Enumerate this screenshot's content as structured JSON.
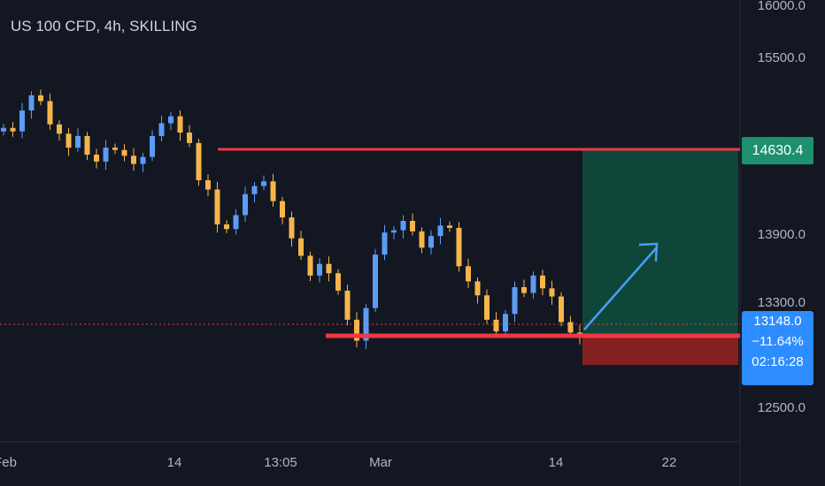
{
  "symbol_title": "US 100 CFD, 4h, SKILLING",
  "colors": {
    "background": "#131722",
    "candle_up": "#5b9cf6",
    "candle_down": "#f6b54c",
    "level_line": "#f23645",
    "profit_zone": "#0e4a3b",
    "loss_zone": "#8b2223",
    "arrow": "#4a9cf5"
  },
  "price_axis": {
    "labels": [
      "16000.0",
      "15500.0",
      "13900.0",
      "13300.0",
      "12500.0"
    ]
  },
  "time_axis": {
    "labels": [
      "Feb",
      "14",
      "13:05",
      "Mar",
      "14",
      "22"
    ]
  },
  "target_tag": {
    "price": "14630.4"
  },
  "last_price_tag": {
    "price": "13148.0",
    "change": "−11.64%",
    "countdown": "02:16:28"
  },
  "chart_data": {
    "type": "line",
    "title": "US 100 CFD, 4h, SKILLING",
    "x_labels": [
      "Feb",
      "14",
      "13:05",
      "Mar",
      "14",
      "22"
    ],
    "ylim": [
      12250,
      16050
    ],
    "y_ticks": [
      16000,
      15500,
      13900,
      13300,
      12500
    ],
    "series": [
      {
        "values": [
          14950,
          14920,
          15100,
          15230,
          15180,
          14980,
          14900,
          14780,
          14880,
          14720,
          14660,
          14780,
          14760,
          14710,
          14640,
          14700,
          14880,
          14990,
          15050,
          14910,
          14820,
          14500,
          14420,
          14120,
          14080,
          14200,
          14380,
          14450,
          14490,
          14320,
          14180,
          14000,
          13850,
          13680,
          13780,
          13700,
          13550,
          13300,
          13120,
          13400,
          13860,
          14050,
          14070,
          14150,
          14060,
          13920,
          14020,
          14110,
          14090,
          13760,
          13630,
          13510,
          13300,
          13200,
          13350,
          13580,
          13530,
          13680,
          13570,
          13500,
          13280,
          13190,
          13148
        ]
      }
    ],
    "levels": {
      "resistance": 14630.4,
      "support": 13148.0
    },
    "position": {
      "entry": 13148.0,
      "target": 14630.4,
      "stop": 12950
    }
  }
}
